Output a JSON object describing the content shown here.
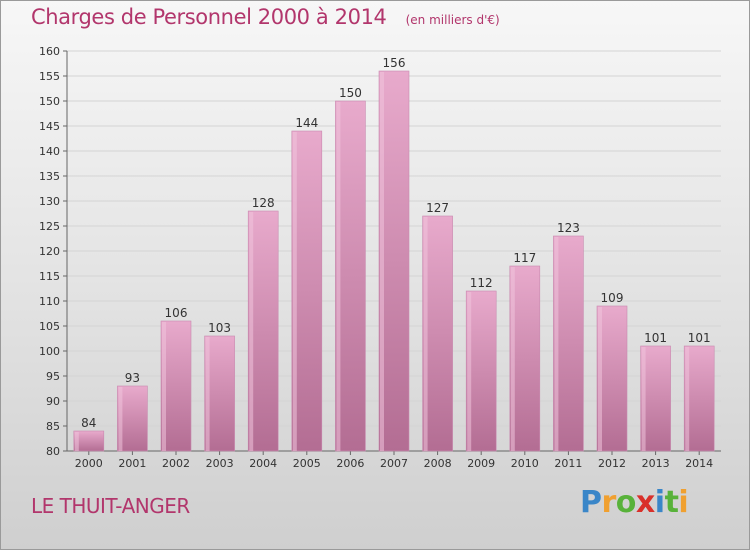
{
  "chart_data": {
    "type": "bar",
    "title": "Charges de Personnel 2000 à 2014",
    "subtitle": "(en milliers d'€)",
    "categories": [
      "2000",
      "2001",
      "2002",
      "2003",
      "2004",
      "2005",
      "2006",
      "2007",
      "2008",
      "2009",
      "2010",
      "2011",
      "2012",
      "2013",
      "2014"
    ],
    "values": [
      84,
      93,
      106,
      103,
      128,
      144,
      150,
      156,
      127,
      112,
      117,
      123,
      109,
      101,
      101
    ],
    "ylim": [
      80,
      160
    ],
    "yticks": [
      80,
      85,
      90,
      95,
      100,
      105,
      110,
      115,
      120,
      125,
      130,
      135,
      140,
      145,
      150,
      155,
      160
    ],
    "grid": true,
    "bar_color": "#c7699b",
    "bar_color_light": "#e6a9ca",
    "bar_color_dark": "#b56b92"
  },
  "location": "LE THUIT-ANGER",
  "logo": {
    "letters": [
      "P",
      "r",
      "o",
      "x",
      "i",
      "t",
      "i"
    ],
    "colors": [
      "#3a86c8",
      "#f0a030",
      "#58b23a",
      "#d9302a",
      "#3a86c8",
      "#58b23a",
      "#f0a030"
    ]
  },
  "colors": {
    "title": "#b2366c",
    "axis": "#444444"
  }
}
